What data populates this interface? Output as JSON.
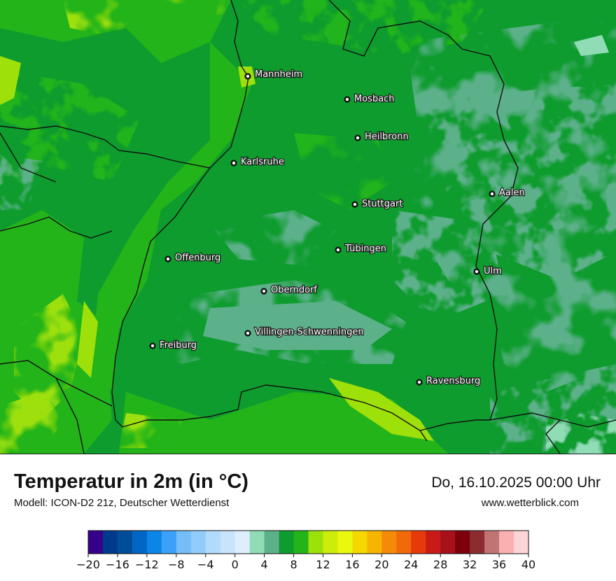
{
  "map": {
    "title": "Temperatur in 2m (in °C)",
    "model": "Modell: ICON-D2 21z, Deutscher Wetterdienst",
    "datetime": "Do, 16.10.2025 00:00 Uhr",
    "website": "www.wetterblick.com",
    "cities": [
      {
        "name": "Mannheim"
      },
      {
        "name": "Mosbach"
      },
      {
        "name": "Heilbronn"
      },
      {
        "name": "Karlsruhe"
      },
      {
        "name": "Aalen"
      },
      {
        "name": "Stuttgart"
      },
      {
        "name": "Tübingen"
      },
      {
        "name": "Offenburg"
      },
      {
        "name": "Ulm"
      },
      {
        "name": "Oberndorf"
      },
      {
        "name": "Villingen-Schwenningen"
      },
      {
        "name": "Freiburg"
      },
      {
        "name": "Ravensburg"
      }
    ]
  },
  "legend": {
    "colors": [
      "#37008a",
      "#003a8c",
      "#004c96",
      "#0066c4",
      "#0a86e8",
      "#3aa0f8",
      "#74bdf8",
      "#92ccfa",
      "#b1dafb",
      "#c7e4fc",
      "#dfeefd",
      "#90dcb4",
      "#5cb08a",
      "#0e9c2e",
      "#23b41a",
      "#9ee00a",
      "#ccec0a",
      "#eaf80e",
      "#f5d800",
      "#f6b600",
      "#f48a08",
      "#f06a0a",
      "#e63a0a",
      "#c81a16",
      "#a8101a",
      "#7c000c",
      "#8c2c30",
      "#c27474",
      "#fab0b0",
      "#fcd6d6"
    ],
    "ticks": [
      "−20",
      "−16",
      "−12",
      "−8",
      "−4",
      "0",
      "4",
      "8",
      "12",
      "16",
      "20",
      "24",
      "28",
      "32",
      "36",
      "40"
    ]
  }
}
